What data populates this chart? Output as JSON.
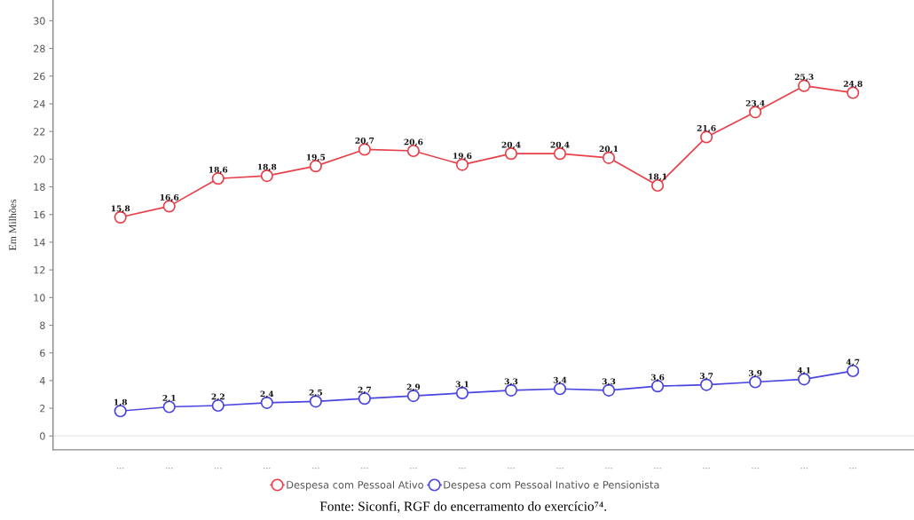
{
  "chart_data": {
    "type": "line",
    "ylabel": "Em Milhões",
    "categories": [
      "...",
      "...",
      "...",
      "...",
      "...",
      "...",
      "...",
      "...",
      "...",
      "...",
      "...",
      "...",
      "...",
      "...",
      "...",
      "..."
    ],
    "series": [
      {
        "name": "Despesa com Pessoal Ativo",
        "color": "#e8404a",
        "values": [
          15.8,
          16.6,
          18.6,
          18.8,
          19.5,
          20.7,
          20.6,
          19.6,
          20.4,
          20.4,
          20.1,
          18.1,
          21.6,
          23.4,
          25.3,
          24.8
        ],
        "value_labels": [
          "15,8",
          "16,6",
          "18,6",
          "18,8",
          "19,5",
          "20,7",
          "20,6",
          "19,6",
          "20,4",
          "20,4",
          "20,1",
          "18,1",
          "21,6",
          "23,4",
          "25,3",
          "24,8"
        ]
      },
      {
        "name": "Despesa com Pessoal Inativo e Pensionista",
        "color": "#4a44e0",
        "values": [
          1.8,
          2.1,
          2.2,
          2.4,
          2.5,
          2.7,
          2.9,
          3.1,
          3.3,
          3.4,
          3.3,
          3.6,
          3.7,
          3.9,
          4.1,
          4.7
        ],
        "value_labels": [
          "1,8",
          "2,1",
          "2,2",
          "2,4",
          "2,5",
          "2,7",
          "2,9",
          "3,1",
          "3,3",
          "3,4",
          "3,3",
          "3,6",
          "3,7",
          "3,9",
          "4,1",
          "4,7"
        ]
      }
    ],
    "ylim": [
      -1,
      31.5
    ],
    "yticks": [
      0,
      2,
      4,
      6,
      8,
      10,
      12,
      14,
      16,
      18,
      20,
      22,
      24,
      26,
      28,
      30
    ],
    "ref_lines": [
      {
        "axis": "y",
        "value": 0,
        "color": "#ececec"
      }
    ],
    "grid": false,
    "legend": "bottom",
    "marker": "circle",
    "line_style": "solid",
    "annotations": [
      "Fonte: Siconfi, RGF do encerramento do exercício⁷⁴."
    ]
  }
}
